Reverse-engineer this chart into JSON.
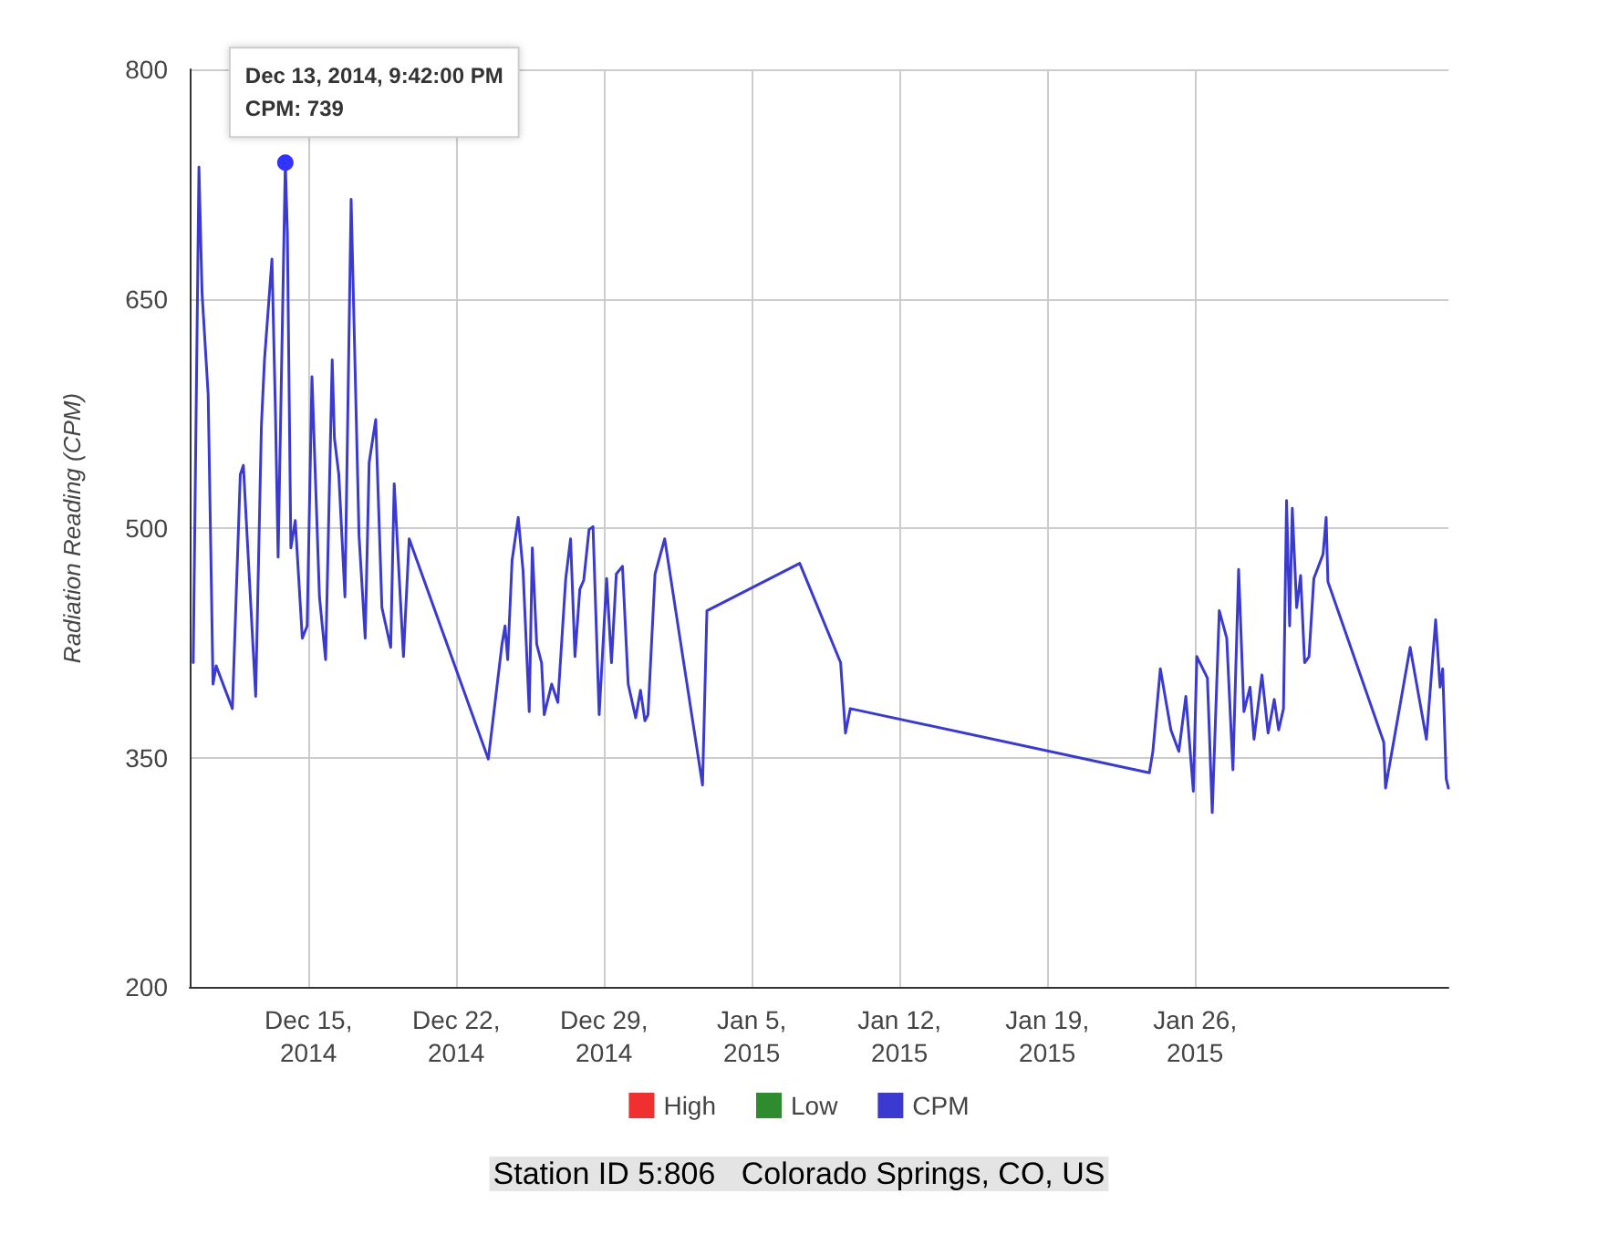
{
  "chart_data": {
    "type": "line",
    "ylabel": "Radiation Reading (CPM)",
    "xlim": [
      "2014-12-09T09:00",
      "2015-02-07T00:00"
    ],
    "xticks": [
      {
        "value": "2014-12-15",
        "label": "Dec 15, 2014"
      },
      {
        "value": "2014-12-22",
        "label": "Dec 22, 2014"
      },
      {
        "value": "2014-12-29",
        "label": "Dec 29, 2014"
      },
      {
        "value": "2015-01-05",
        "label": "Jan 5, 2015"
      },
      {
        "value": "2015-01-12",
        "label": "Jan 12, 2015"
      },
      {
        "value": "2015-01-19",
        "label": "Jan 19, 2015"
      },
      {
        "value": "2015-01-26",
        "label": "Jan 26, 2015"
      }
    ],
    "ylim": [
      200,
      800
    ],
    "yticks": [
      200,
      350,
      500,
      650,
      800
    ],
    "grid": true,
    "legend": "bottom",
    "marker": "none",
    "line_style": "solid",
    "annotations": [
      {
        "text": "Dec 13, 2014, 9:42:00 PM\nCPM: 739",
        "x": "2014-12-13T21:42",
        "y": 739
      },
      "Station ID 5:806   Colorado Springs, CO, US"
    ],
    "series": [
      {
        "name": "High",
        "color": "#f03030"
      },
      {
        "name": "Low",
        "color": "#2e8b2e"
      },
      {
        "name": "CPM",
        "color": "#3a3ad0",
        "x": [
          "2014-12-09T13:00",
          "2014-12-09T19:30",
          "2014-12-09T23:00",
          "2014-12-10T06:00",
          "2014-12-10T11:30",
          "2014-12-10T15:00",
          "2014-12-11T09:30",
          "2014-12-11T18:30",
          "2014-12-11T22:00",
          "2014-12-12T01:30",
          "2014-12-12T12:00",
          "2014-12-12T18:30",
          "2014-12-12T22:00",
          "2014-12-13T06:30",
          "2014-12-13T10:30",
          "2014-12-13T13:30",
          "2014-12-13T21:42",
          "2014-12-14T00:00",
          "2014-12-14T04:00",
          "2014-12-14T09:00",
          "2014-12-14T17:00",
          "2014-12-14T22:30",
          "2014-12-15T04:00",
          "2014-12-15T12:30",
          "2014-12-15T19:30",
          "2014-12-16T03:00",
          "2014-12-16T05:30",
          "2014-12-16T10:30",
          "2014-12-16T17:30",
          "2014-12-17T00:30",
          "2014-12-17T09:30",
          "2014-12-17T16:30",
          "2014-12-17T21:00",
          "2014-12-18T04:30",
          "2014-12-18T11:30",
          "2014-12-18T21:30",
          "2014-12-19T01:30",
          "2014-12-19T12:00",
          "2014-12-19T18:30",
          "2014-12-23T12:30",
          "2014-12-24T04:00",
          "2014-12-24T07:30",
          "2014-12-24T10:30",
          "2014-12-24T15:30",
          "2014-12-24T22:30",
          "2014-12-25T04:00",
          "2014-12-25T11:00",
          "2014-12-25T14:30",
          "2014-12-25T19:30",
          "2014-12-26T01:00",
          "2014-12-26T04:00",
          "2014-12-26T12:30",
          "2014-12-26T19:30",
          "2014-12-27T04:30",
          "2014-12-27T10:00",
          "2014-12-27T15:00",
          "2014-12-27T20:30",
          "2014-12-28T01:00",
          "2014-12-28T07:00",
          "2014-12-28T11:30",
          "2014-12-28T18:30",
          "2014-12-29T03:00",
          "2014-12-29T08:30",
          "2014-12-29T14:00",
          "2014-12-29T21:00",
          "2014-12-30T03:30",
          "2014-12-30T12:00",
          "2014-12-30T17:30",
          "2014-12-30T22:30",
          "2014-12-31T02:00",
          "2014-12-31T10:00",
          "2014-12-31T21:00",
          "2015-01-02T16:00",
          "2015-01-02T21:00",
          "2015-01-07T06:30",
          "2015-01-09T05:00",
          "2015-01-09T10:30",
          "2015-01-09T16:00",
          "2015-01-23T20:00",
          "2015-01-24T00:00",
          "2015-01-24T08:30",
          "2015-01-24T20:30",
          "2015-01-25T05:30",
          "2015-01-25T13:30",
          "2015-01-25T22:00",
          "2015-01-26T02:00",
          "2015-01-26T14:00",
          "2015-01-26T19:30",
          "2015-01-27T03:30",
          "2015-01-27T12:00",
          "2015-01-27T19:00",
          "2015-01-28T01:30",
          "2015-01-28T07:30",
          "2015-01-28T14:30",
          "2015-01-28T19:00",
          "2015-01-29T04:00",
          "2015-01-29T11:00",
          "2015-01-29T18:00",
          "2015-01-29T23:00",
          "2015-01-30T04:30",
          "2015-01-30T08:00",
          "2015-01-30T11:30",
          "2015-01-30T14:30",
          "2015-01-30T19:30",
          "2015-01-31T00:00",
          "2015-01-31T04:30",
          "2015-01-31T09:30",
          "2015-01-31T15:00",
          "2015-02-01T01:30",
          "2015-02-01T05:00",
          "2015-02-01T07:00",
          "2015-02-03T22:30",
          "2015-02-04T00:30",
          "2015-02-05T04:30",
          "2015-02-05T23:00",
          "2015-02-06T09:30",
          "2015-02-06T14:30",
          "2015-02-06T17:30",
          "2015-02-06T21:30",
          "2015-02-07T00:00"
        ],
        "values": [
          412,
          736,
          654,
          587,
          398,
          410,
          382,
          535,
          541,
          503,
          390,
          567,
          610,
          676,
          575,
          481,
          739,
          694,
          487,
          505,
          428,
          436,
          599,
          455,
          414,
          610,
          559,
          535,
          455,
          715,
          495,
          428,
          543,
          571,
          448,
          422,
          529,
          416,
          493,
          349,
          424,
          436,
          414,
          479,
          507,
          472,
          380,
          487,
          424,
          412,
          378,
          398,
          386,
          467,
          493,
          416,
          460,
          466,
          499,
          501,
          378,
          467,
          412,
          470,
          475,
          398,
          376,
          394,
          374,
          378,
          470,
          493,
          332,
          446,
          477,
          412,
          366,
          382,
          340,
          354,
          408,
          368,
          354,
          390,
          328,
          416,
          402,
          314,
          446,
          428,
          342,
          473,
          380,
          396,
          362,
          404,
          366,
          388,
          368,
          382,
          518,
          436,
          513,
          448,
          469,
          412,
          416,
          467,
          483,
          507,
          465,
          360,
          330,
          422,
          362,
          440,
          396,
          408,
          336,
          330
        ]
      }
    ]
  }
}
